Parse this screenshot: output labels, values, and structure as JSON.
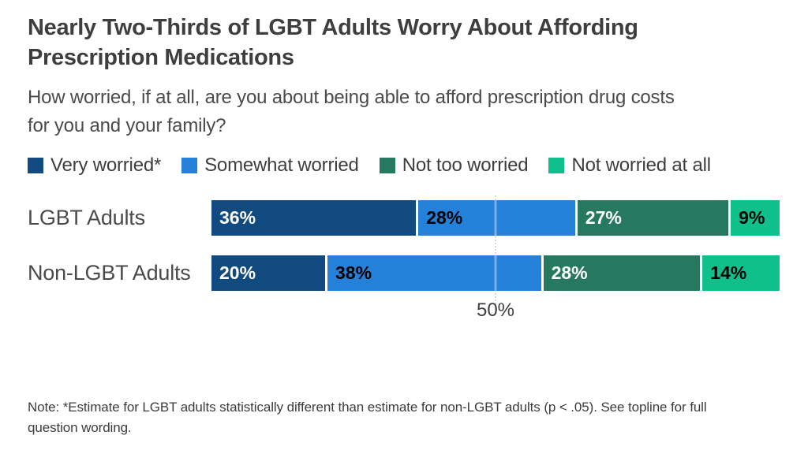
{
  "title": {
    "lines": [
      "Nearly Two-Thirds of LGBT Adults Worry About Affording",
      "Prescription Medications"
    ]
  },
  "subtitle": {
    "lines": [
      "How worried, if at all, are you about being able to afford prescription drug costs",
      "for you and your family?"
    ]
  },
  "chart_data": {
    "type": "bar",
    "stacked": true,
    "orientation": "horizontal",
    "categories": [
      "LGBT Adults",
      "Non-LGBT Adults"
    ],
    "series": [
      {
        "name": "Very worried*",
        "color": "#114A7F",
        "label_color": "#FFFFFF",
        "values": [
          36,
          20
        ]
      },
      {
        "name": "Somewhat worried",
        "color": "#2480D9",
        "label_color": "#000000",
        "values": [
          28,
          38
        ]
      },
      {
        "name": "Not too worried",
        "color": "#26795F",
        "label_color": "#FFFFFF",
        "values": [
          27,
          28
        ]
      },
      {
        "name": "Not worried at all",
        "color": "#0FBF8C",
        "label_color": "#000000",
        "values": [
          9,
          14
        ]
      }
    ],
    "value_suffix": "%",
    "xlim": [
      0,
      100
    ],
    "x_tick": {
      "value": 50,
      "label": "50%"
    },
    "legend_position": "top",
    "grid": "single dotted gridline at 50%",
    "background": "#ffffff"
  },
  "note": {
    "lines": [
      "Note: *Estimate for LGBT adults statistically different than estimate for non-LGBT adults (p < .05). See topline for full",
      "question wording."
    ]
  }
}
